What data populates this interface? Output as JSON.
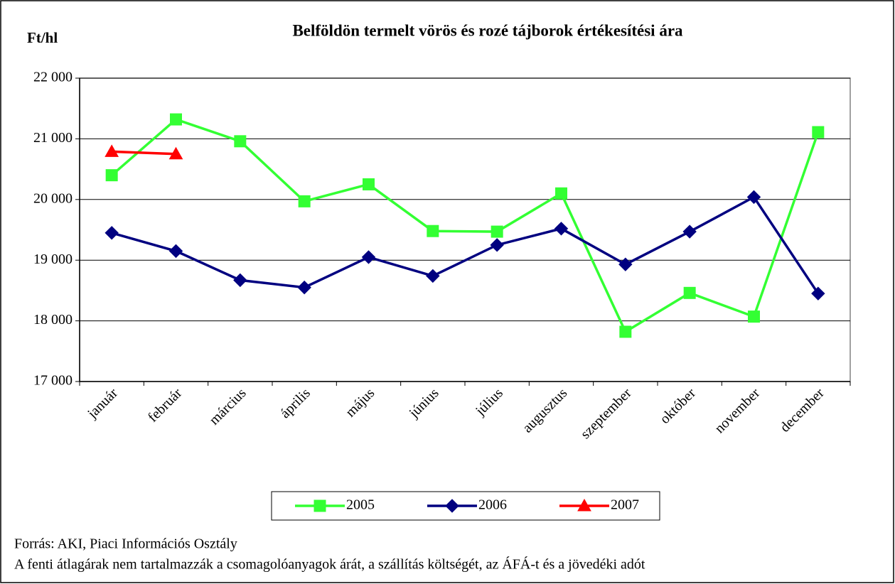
{
  "chart_data": {
    "type": "line",
    "title": "Belföldön termelt vörös és rozé tájborok értékesítési ára",
    "y_label": "Ft/hl",
    "categories": [
      "január",
      "február",
      "március",
      "április",
      "május",
      "június",
      "július",
      "augusztus",
      "szeptember",
      "október",
      "november",
      "december"
    ],
    "series": [
      {
        "name": "2005",
        "color": "#33ff33",
        "marker": "square",
        "values": [
          20400,
          21320,
          20960,
          19970,
          20250,
          19480,
          19470,
          20100,
          17820,
          18460,
          18070,
          21110
        ]
      },
      {
        "name": "2006",
        "color": "#000080",
        "marker": "diamond",
        "values": [
          19450,
          19150,
          18670,
          18550,
          19050,
          18740,
          19250,
          19520,
          18930,
          19470,
          20040,
          18450
        ]
      },
      {
        "name": "2007",
        "color": "#ff0000",
        "marker": "triangle",
        "values": [
          20790,
          20750,
          null,
          null,
          null,
          null,
          null,
          null,
          null,
          null,
          null,
          null
        ]
      }
    ],
    "ylim": [
      17000,
      22000
    ],
    "yticks": [
      {
        "value": 17000,
        "label": "17 000"
      },
      {
        "value": 18000,
        "label": "18 000"
      },
      {
        "value": 19000,
        "label": "19 000"
      },
      {
        "value": 20000,
        "label": "20 000"
      },
      {
        "value": 21000,
        "label": "21 000"
      },
      {
        "value": 22000,
        "label": "22 000"
      }
    ],
    "grid": true,
    "legend": "bottom",
    "notes": [
      "Forrás: AKI, Piaci Információs Osztály",
      "A fenti átlagárak nem tartalmazzák a csomagolóanyagok árát, a szállítás költségét, az ÁFÁ-t és a jövedéki adót"
    ]
  }
}
